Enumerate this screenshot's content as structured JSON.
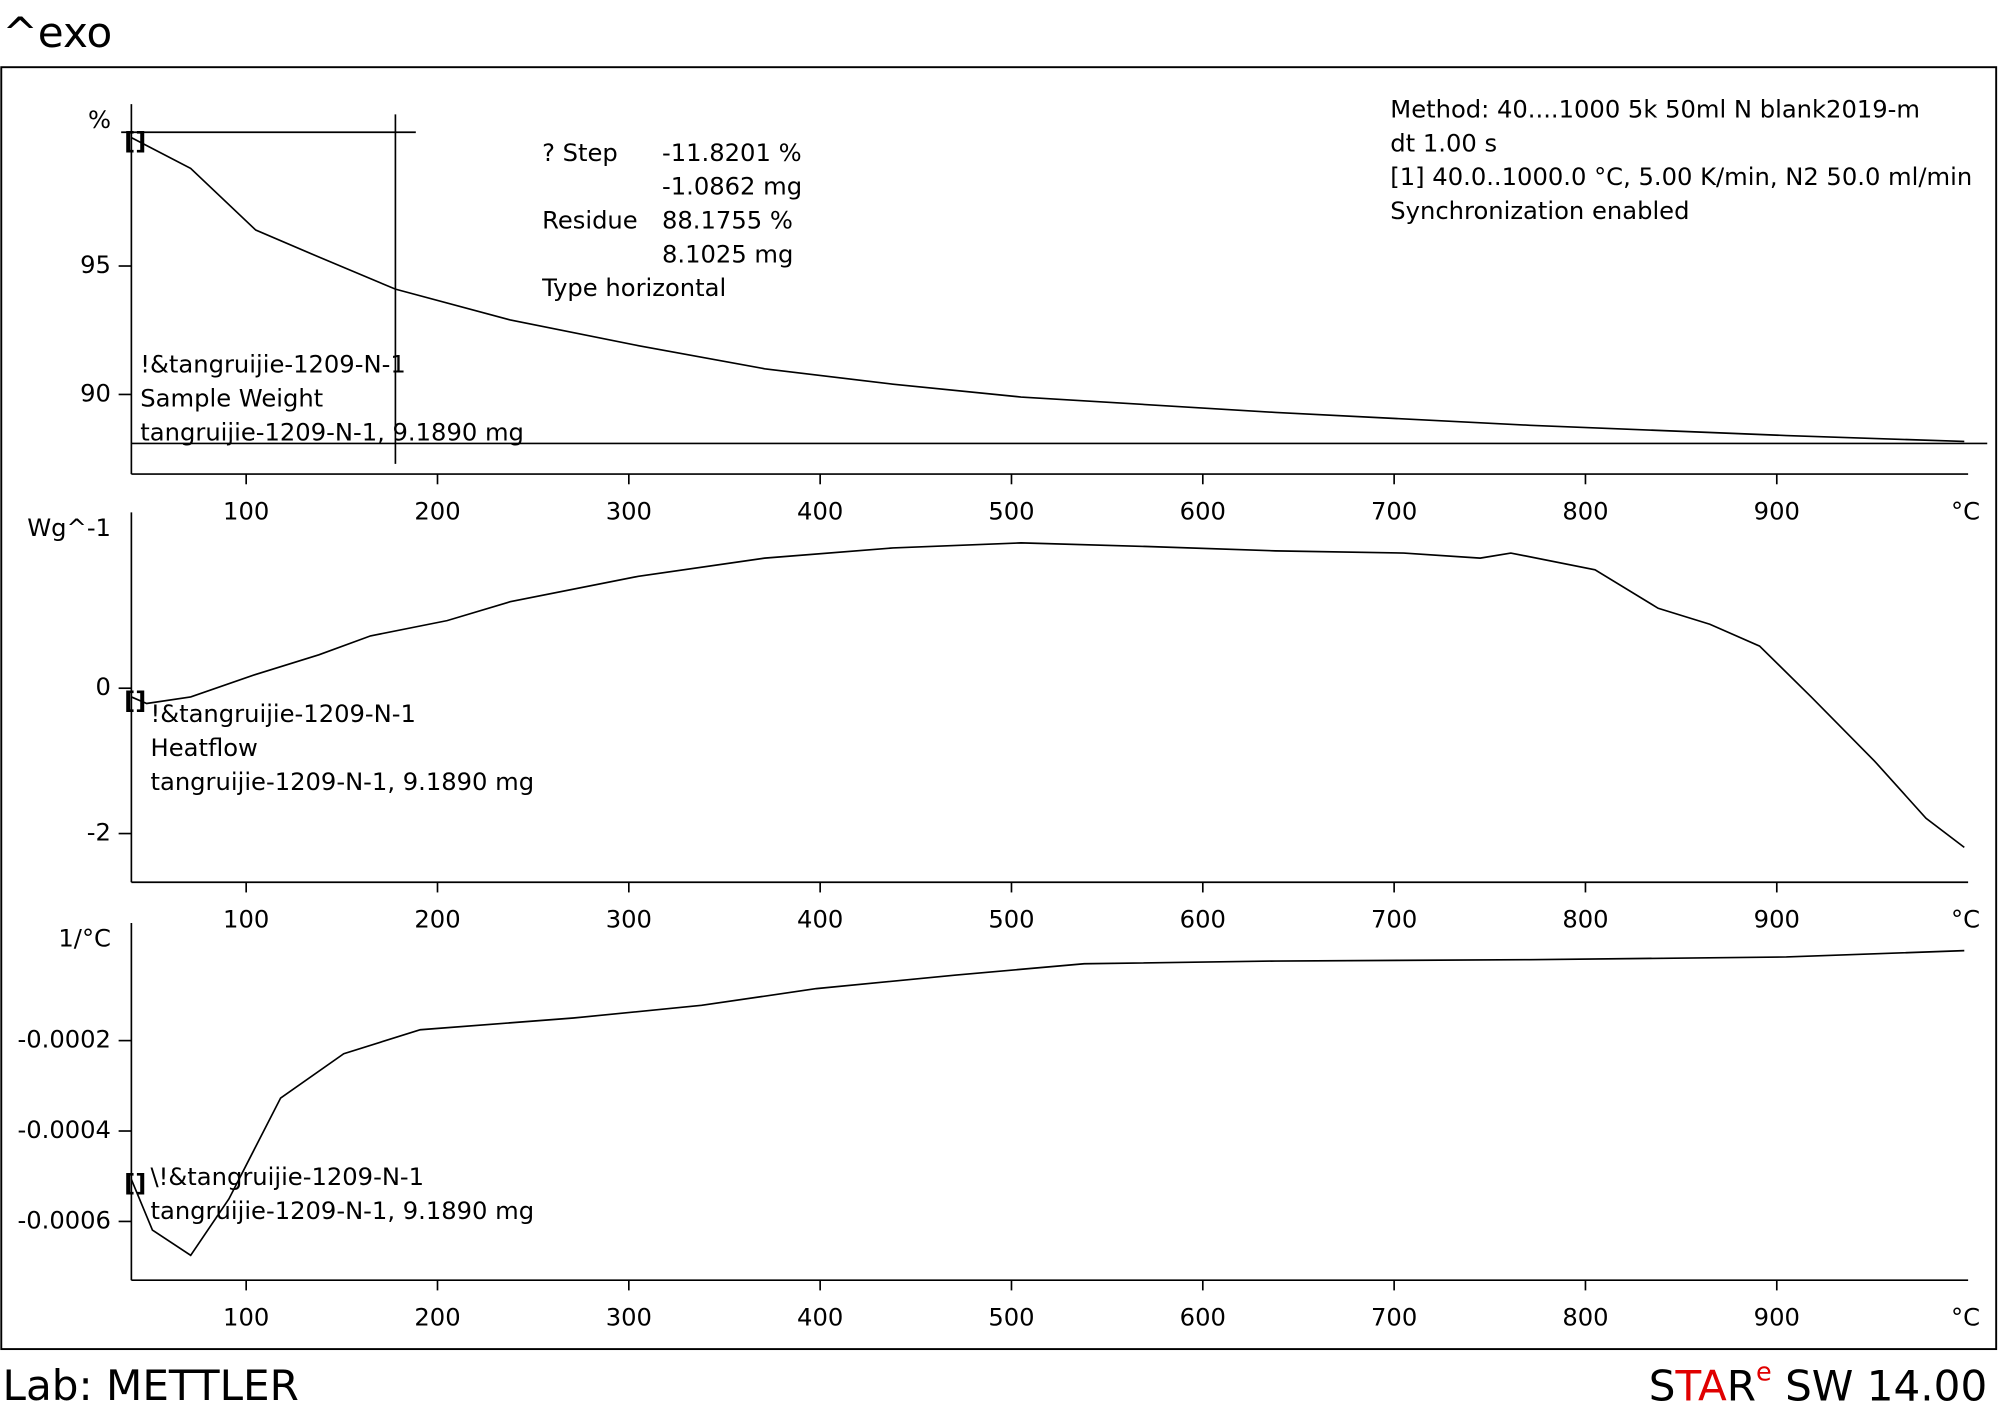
{
  "header": {
    "title": "^exo"
  },
  "footer": {
    "lab": "Lab: METTLER",
    "logo_parts": [
      "S",
      "TA",
      "R",
      "e"
    ],
    "version": "SW 14.00"
  },
  "method": [
    "Method: 40....1000 5k 50ml N blank2019-m",
    "dt 1.00 s",
    "[1] 40.0..1000.0 °C, 5.00 K/min, N2 50.0 ml/min",
    "Synchronization enabled"
  ],
  "step_result": {
    "rows": [
      [
        "? Step",
        "-11.8201 %"
      ],
      [
        "",
        "-1.0862 mg"
      ],
      [
        "Residue",
        "88.1755 %"
      ],
      [
        "",
        "8.1025 mg"
      ],
      [
        "Type horizontal",
        ""
      ]
    ]
  },
  "chart_data": [
    {
      "type": "line",
      "ylabel": "%",
      "xlabel": "°C",
      "xlim": [
        40,
        1000
      ],
      "xticks": [
        100,
        200,
        300,
        400,
        500,
        600,
        700,
        800,
        900
      ],
      "ylim": [
        86.9,
        101.3
      ],
      "yticks": [
        90,
        95
      ],
      "curve_labels": [
        "!&tangruijie-1209-N-1",
        "Sample Weight",
        "tangruijie-1209-N-1, 9.1890 mg"
      ],
      "series": [
        {
          "color": "#000000",
          "x": [
            40,
            71,
            105,
            138,
            178,
            238,
            305,
            371,
            438,
            505,
            638,
            771,
            905,
            998
          ],
          "values": [
            100,
            98.8,
            96.4,
            95.35,
            94.1,
            92.9,
            91.9,
            91.0,
            90.4,
            89.9,
            89.3,
            88.8,
            88.4,
            88.17
          ]
        }
      ]
    },
    {
      "type": "line",
      "ylabel": "Wg^-1",
      "xlabel": "°C",
      "xlim": [
        40,
        1000
      ],
      "xticks": [
        100,
        200,
        300,
        400,
        500,
        600,
        700,
        800,
        900
      ],
      "ylim": [
        -2.67,
        2.42
      ],
      "yticks": [
        0,
        -2
      ],
      "curve_labels": [
        "!&tangruijie-1209-N-1",
        "Heatflow",
        "tangruijie-1209-N-1, 9.1890 mg"
      ],
      "series": [
        {
          "color": "#000000",
          "x": [
            40,
            48,
            71,
            105,
            138,
            165,
            205,
            238,
            305,
            371,
            438,
            505,
            571,
            638,
            705,
            745,
            761,
            805,
            838,
            865,
            891,
            918,
            951,
            978,
            998
          ],
          "values": [
            -0.12,
            -0.21,
            -0.12,
            0.19,
            0.46,
            0.72,
            0.93,
            1.19,
            1.54,
            1.79,
            1.93,
            2.0,
            1.95,
            1.89,
            1.86,
            1.79,
            1.86,
            1.63,
            1.1,
            0.88,
            0.58,
            -0.12,
            -1.0,
            -1.79,
            -2.19
          ]
        }
      ]
    },
    {
      "type": "line",
      "ylabel": "1/°C",
      "xlabel": "°C",
      "xlim": [
        40,
        1000
      ],
      "xticks": [
        100,
        200,
        300,
        400,
        500,
        600,
        700,
        800,
        900
      ],
      "ylim": [
        -0.00073,
        6e-05
      ],
      "yticks": [
        -0.0002,
        -0.0004,
        -0.0006
      ],
      "curve_labels": [
        "\\!&tangruijie-1209-N-1",
        "tangruijie-1209-N-1, 9.1890 mg"
      ],
      "series": [
        {
          "color": "#000000",
          "x": [
            40,
            51,
            71,
            91,
            118,
            151,
            191,
            271,
            338,
            398,
            471,
            538,
            638,
            771,
            905,
            998
          ],
          "values": [
            -0.000507,
            -0.000619,
            -0.000675,
            -0.00055,
            -0.000327,
            -0.000229,
            -0.000176,
            -0.00015,
            -0.000122,
            -8.5e-05,
            -5.5e-05,
            -3e-05,
            -2.4e-05,
            -2.1e-05,
            -1.5e-05,
            -1e-06
          ]
        }
      ]
    }
  ]
}
